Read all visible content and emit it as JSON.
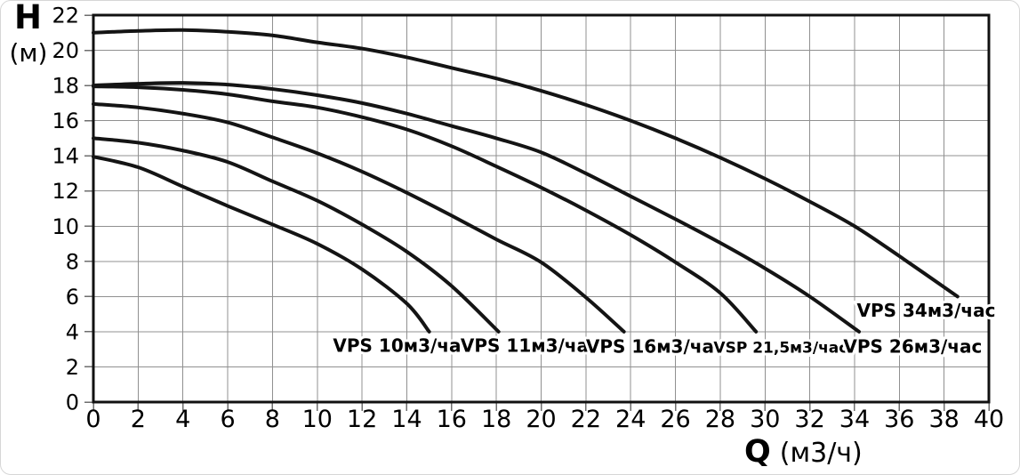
{
  "axes": {
    "y": {
      "symbol": "H",
      "unit": "(м)"
    },
    "x": {
      "symbol": "Q",
      "unit": "(м3/ч)"
    }
  },
  "colors": {
    "curve": "#141414",
    "grid": "#909090",
    "axis_frame": "#111111",
    "tick": "#6e6e6e",
    "text": "#000000",
    "background": "#ffffff"
  },
  "chart_data": {
    "type": "line",
    "title": "",
    "xlabel": "Q (м3/ч)",
    "ylabel": "H (м)",
    "xlim": [
      0,
      40
    ],
    "ylim": [
      0,
      22
    ],
    "xticks": [
      0,
      2,
      4,
      6,
      8,
      10,
      12,
      14,
      16,
      18,
      20,
      22,
      24,
      26,
      28,
      30,
      32,
      34,
      36,
      38,
      40
    ],
    "yticks": [
      0,
      2,
      4,
      6,
      8,
      10,
      12,
      14,
      16,
      18,
      20,
      22
    ],
    "grid": true,
    "legend_position": "labels-inside-plot",
    "series": [
      {
        "name": "VPS 10м3/час",
        "points": [
          [
            0,
            13.95
          ],
          [
            2,
            13.35
          ],
          [
            4,
            12.25
          ],
          [
            6,
            11.15
          ],
          [
            8,
            10.1
          ],
          [
            10,
            9.0
          ],
          [
            12,
            7.55
          ],
          [
            14,
            5.6
          ],
          [
            15,
            4.0
          ]
        ],
        "label": {
          "q": 13.8,
          "h": 3.2,
          "size": 20
        }
      },
      {
        "name": "VPS 11м3/час",
        "points": [
          [
            0,
            15.0
          ],
          [
            2,
            14.75
          ],
          [
            4,
            14.3
          ],
          [
            6,
            13.65
          ],
          [
            8,
            12.55
          ],
          [
            10,
            11.45
          ],
          [
            12,
            10.1
          ],
          [
            14,
            8.55
          ],
          [
            16,
            6.6
          ],
          [
            18.1,
            4.0
          ]
        ],
        "label": {
          "q": 19.5,
          "h": 3.2,
          "size": 20
        }
      },
      {
        "name": "VPS 16м3/час",
        "points": [
          [
            0,
            16.95
          ],
          [
            2,
            16.75
          ],
          [
            4,
            16.4
          ],
          [
            6,
            15.9
          ],
          [
            8,
            15.05
          ],
          [
            10,
            14.15
          ],
          [
            12,
            13.1
          ],
          [
            14,
            11.9
          ],
          [
            16,
            10.6
          ],
          [
            18,
            9.25
          ],
          [
            20,
            7.95
          ],
          [
            22,
            5.95
          ],
          [
            23.7,
            4.0
          ]
        ],
        "label": {
          "q": 25.1,
          "h": 3.15,
          "size": 20
        }
      },
      {
        "name": "VSP 21,5м3/час",
        "points": [
          [
            0,
            17.95
          ],
          [
            2,
            17.9
          ],
          [
            4,
            17.75
          ],
          [
            6,
            17.5
          ],
          [
            8,
            17.1
          ],
          [
            10,
            16.75
          ],
          [
            12,
            16.2
          ],
          [
            14,
            15.5
          ],
          [
            16,
            14.55
          ],
          [
            18,
            13.4
          ],
          [
            20,
            12.2
          ],
          [
            22,
            10.9
          ],
          [
            24,
            9.5
          ],
          [
            26,
            7.95
          ],
          [
            28,
            6.2
          ],
          [
            29.6,
            4.0
          ]
        ],
        "label": {
          "q": 30.7,
          "h": 3.1,
          "size": 17
        }
      },
      {
        "name": "VPS 26м3/час",
        "points": [
          [
            0,
            18.0
          ],
          [
            2,
            18.1
          ],
          [
            4,
            18.15
          ],
          [
            6,
            18.05
          ],
          [
            8,
            17.8
          ],
          [
            10,
            17.45
          ],
          [
            12,
            17.0
          ],
          [
            14,
            16.4
          ],
          [
            16,
            15.7
          ],
          [
            18,
            15.0
          ],
          [
            20,
            14.2
          ],
          [
            22,
            13.0
          ],
          [
            24,
            11.7
          ],
          [
            26,
            10.4
          ],
          [
            28,
            9.05
          ],
          [
            30,
            7.6
          ],
          [
            32,
            6.0
          ],
          [
            34.2,
            4.0
          ]
        ],
        "label": {
          "q": 36.6,
          "h": 3.15,
          "size": 20
        }
      },
      {
        "name": "VPS 34м3/час",
        "points": [
          [
            0,
            21.0
          ],
          [
            2,
            21.1
          ],
          [
            4,
            21.15
          ],
          [
            6,
            21.05
          ],
          [
            8,
            20.85
          ],
          [
            10,
            20.45
          ],
          [
            12,
            20.1
          ],
          [
            14,
            19.6
          ],
          [
            16,
            19.0
          ],
          [
            18,
            18.4
          ],
          [
            20,
            17.7
          ],
          [
            22,
            16.9
          ],
          [
            24,
            16.0
          ],
          [
            26,
            15.0
          ],
          [
            28,
            13.9
          ],
          [
            30,
            12.7
          ],
          [
            32,
            11.4
          ],
          [
            34,
            10.0
          ],
          [
            36,
            8.3
          ],
          [
            38.6,
            6.0
          ]
        ],
        "label": {
          "q": 37.2,
          "h": 5.2,
          "size": 20
        }
      }
    ]
  }
}
